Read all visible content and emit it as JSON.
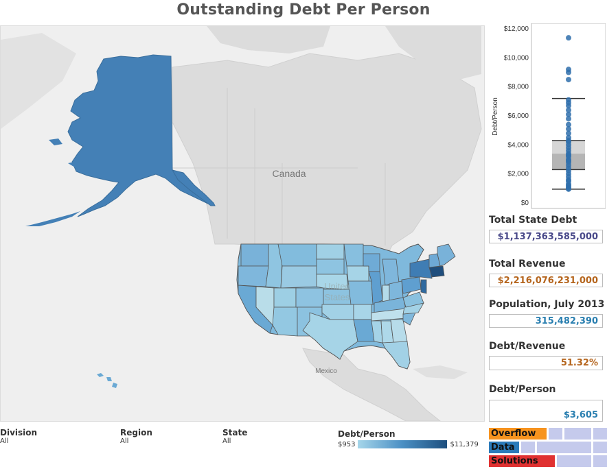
{
  "title": "Outstanding Debt Per Person",
  "map": {
    "labels": {
      "canada": "Canada",
      "us_line1": "United",
      "us_line2": "States",
      "mexico": "Mexico"
    }
  },
  "boxplot": {
    "ylabel": "Debt/Person",
    "ticks": [
      "$12,000",
      "$10,000",
      "$8,000",
      "$6,000",
      "$4,000",
      "$2,000",
      "$0"
    ],
    "tick_values": [
      12000,
      10000,
      8000,
      6000,
      4000,
      2000,
      0
    ],
    "ylim": [
      0,
      12000
    ],
    "whisker_low": 953,
    "q1": 2300,
    "median": 3400,
    "q3": 4300,
    "whisker_high": 7200,
    "points": [
      11379,
      9200,
      9000,
      8500,
      7100,
      6900,
      6700,
      6400,
      6100,
      5800,
      5400,
      5100,
      4800,
      4500,
      4300,
      4200,
      4000,
      3800,
      3600,
      3400,
      3300,
      3200,
      3000,
      2900,
      2800,
      2600,
      2400,
      2200,
      2000,
      1800,
      1600,
      1500,
      1300,
      1200,
      1100,
      1000,
      953
    ]
  },
  "stats": {
    "total_debt_label": "Total State Debt",
    "total_debt_value": "$1,137,363,585,000",
    "total_revenue_label": "Total Revenue",
    "total_revenue_value": "$2,216,076,231,000",
    "population_label": "Population, July 2013",
    "population_value": "315,482,390",
    "debt_revenue_label": "Debt/Revenue",
    "debt_revenue_value": "51.32%",
    "debt_person_label": "Debt/Person",
    "debt_person_value": "$3,605"
  },
  "filters": {
    "division_label": "Division",
    "division_value": "All",
    "region_label": "Region",
    "region_value": "All",
    "state_label": "State",
    "state_value": "All"
  },
  "legend": {
    "title": "Debt/Person",
    "min": "$953",
    "max": "$11,379"
  },
  "nav": [
    {
      "label": "Overflow",
      "color": "#f7931e"
    },
    {
      "label": "Data",
      "color": "#2b7bba"
    },
    {
      "label": "Solutions",
      "color": "#e03131"
    }
  ]
}
